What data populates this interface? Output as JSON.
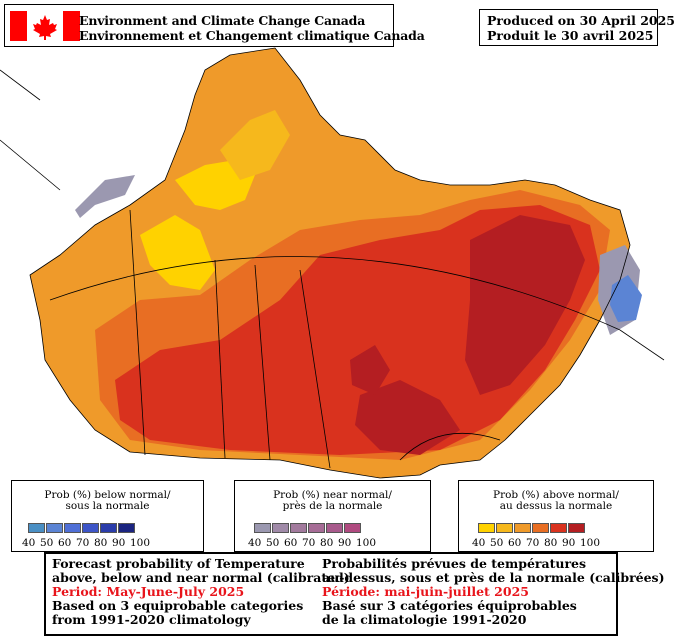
{
  "header": {
    "org_en": "Environment and Climate Change Canada",
    "org_fr": "Environnement et Changement climatique Canada",
    "produced_en": "Produced on 30 April 2025",
    "produced_fr": "Produit le 30 avril 2025"
  },
  "legend": {
    "below": {
      "title_en": "Prob (%) below normal/",
      "title_fr": "sous la normale",
      "ticks": [
        "40",
        "50",
        "60",
        "70",
        "80",
        "90",
        "100"
      ],
      "colors": [
        "#4a8fc4",
        "#5b84d4",
        "#4f6fd6",
        "#3d55c7",
        "#2a3caa",
        "#1b2480"
      ]
    },
    "near": {
      "title_en": "Prob (%) near normal/",
      "title_fr": "près de la normale",
      "ticks": [
        "40",
        "50",
        "60",
        "70",
        "80",
        "90",
        "100"
      ],
      "colors": [
        "#9b98b0",
        "#a08aa8",
        "#a27a9d",
        "#a66c96",
        "#a85a8c",
        "#b04a80"
      ]
    },
    "above": {
      "title_en": "Prob (%) above normal/",
      "title_fr": "au dessus la normale",
      "ticks": [
        "40",
        "50",
        "60",
        "70",
        "80",
        "90",
        "100"
      ],
      "colors": [
        "#ffd200",
        "#f6b81c",
        "#ef9a2a",
        "#e86e23",
        "#d9321e",
        "#b41e22"
      ]
    }
  },
  "info": {
    "left": [
      "Forecast probability of Temperature",
      "above, below and near normal (calibrated)",
      "Period: May-June-July 2025",
      "Based on 3 equiprobable categories",
      " from 1991-2020 climatology"
    ],
    "right": [
      "Probabilités prévues de températures",
      "au-dessus, sous et près de la normale (calibrées)",
      "Période: mai-juin-juillet 2025",
      "Basé sur 3 catégories équiprobables",
      "de la climatologie 1991-2020"
    ]
  },
  "colors": {
    "flag_red": "#ff0000",
    "p40": "#ffd200",
    "p50": "#f6b81c",
    "p60": "#ef9a2a",
    "p70": "#e86e23",
    "p80": "#d9321e",
    "p90": "#b41e22",
    "near_grey": "#9b98b0",
    "below_blue": "#5b84d4"
  }
}
